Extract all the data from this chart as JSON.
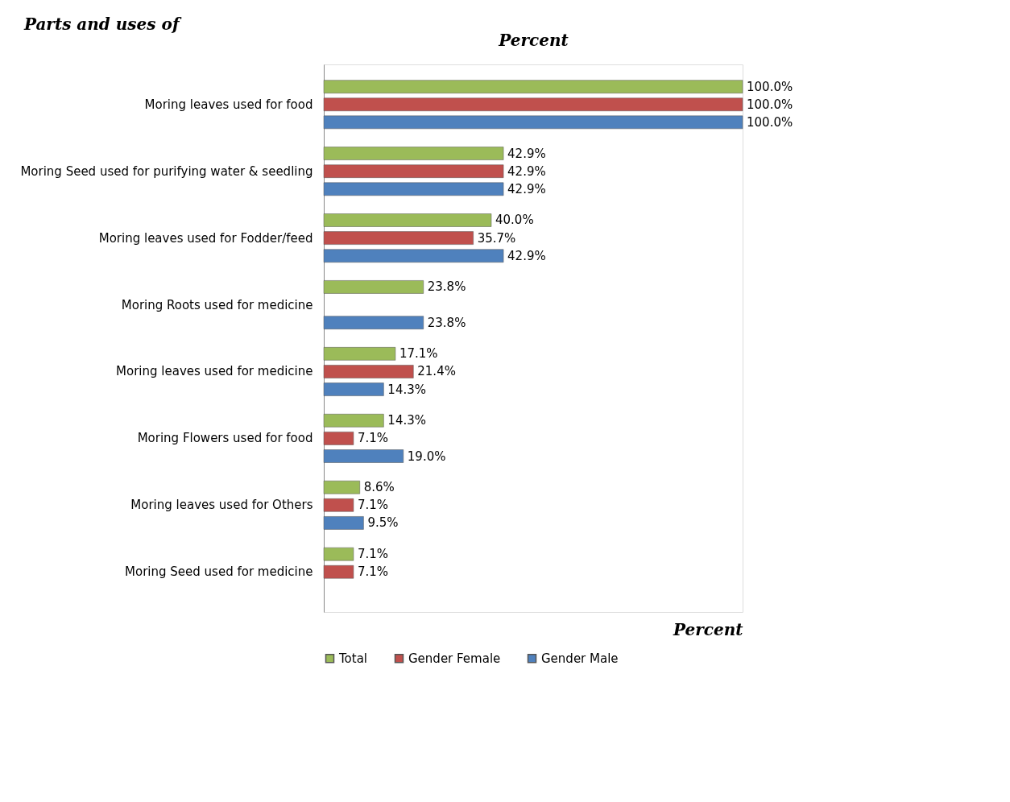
{
  "chart_data": {
    "type": "bar",
    "orientation": "horizontal",
    "ylabel": "Parts and uses of",
    "x2label": "Percent",
    "xlabel": "Percent",
    "categories": [
      "Moring leaves used for food",
      "Moring Seed used for purifying water  & seedling",
      "Moring leaves used for Fodder/feed",
      "Moring Roots used for medicine",
      "Moring leaves used for medicine",
      "Moring Flowers used for food",
      "Moring leaves used for Others",
      "Moring Seed used for medicine"
    ],
    "series": [
      {
        "name": "Total",
        "color": "#9bbb59",
        "values": [
          100.0,
          42.9,
          40.0,
          23.8,
          17.1,
          14.3,
          8.6,
          7.1
        ],
        "value_labels": [
          "100.0%",
          "42.9%",
          "40.0%",
          "23.8%",
          "17.1%",
          "14.3%",
          "8.6%",
          "7.1%"
        ]
      },
      {
        "name": "Gender Female",
        "color": "#c0504d",
        "values": [
          100.0,
          42.9,
          35.7,
          null,
          21.4,
          7.1,
          7.1,
          7.1
        ],
        "value_labels": [
          "100.0%",
          "42.9%",
          "35.7%",
          null,
          "21.4%",
          "7.1%",
          "7.1%",
          "7.1%"
        ]
      },
      {
        "name": "Gender Male",
        "color": "#4f81bd",
        "values": [
          100.0,
          42.9,
          42.9,
          23.8,
          14.3,
          19.0,
          9.5,
          null
        ],
        "value_labels": [
          "100.0%",
          "42.9%",
          "42.9%",
          "23.8%",
          "14.3%",
          "19.0%",
          "9.5%",
          null
        ]
      }
    ],
    "legend": "bottom",
    "grid": false,
    "tick_labels": "y"
  }
}
